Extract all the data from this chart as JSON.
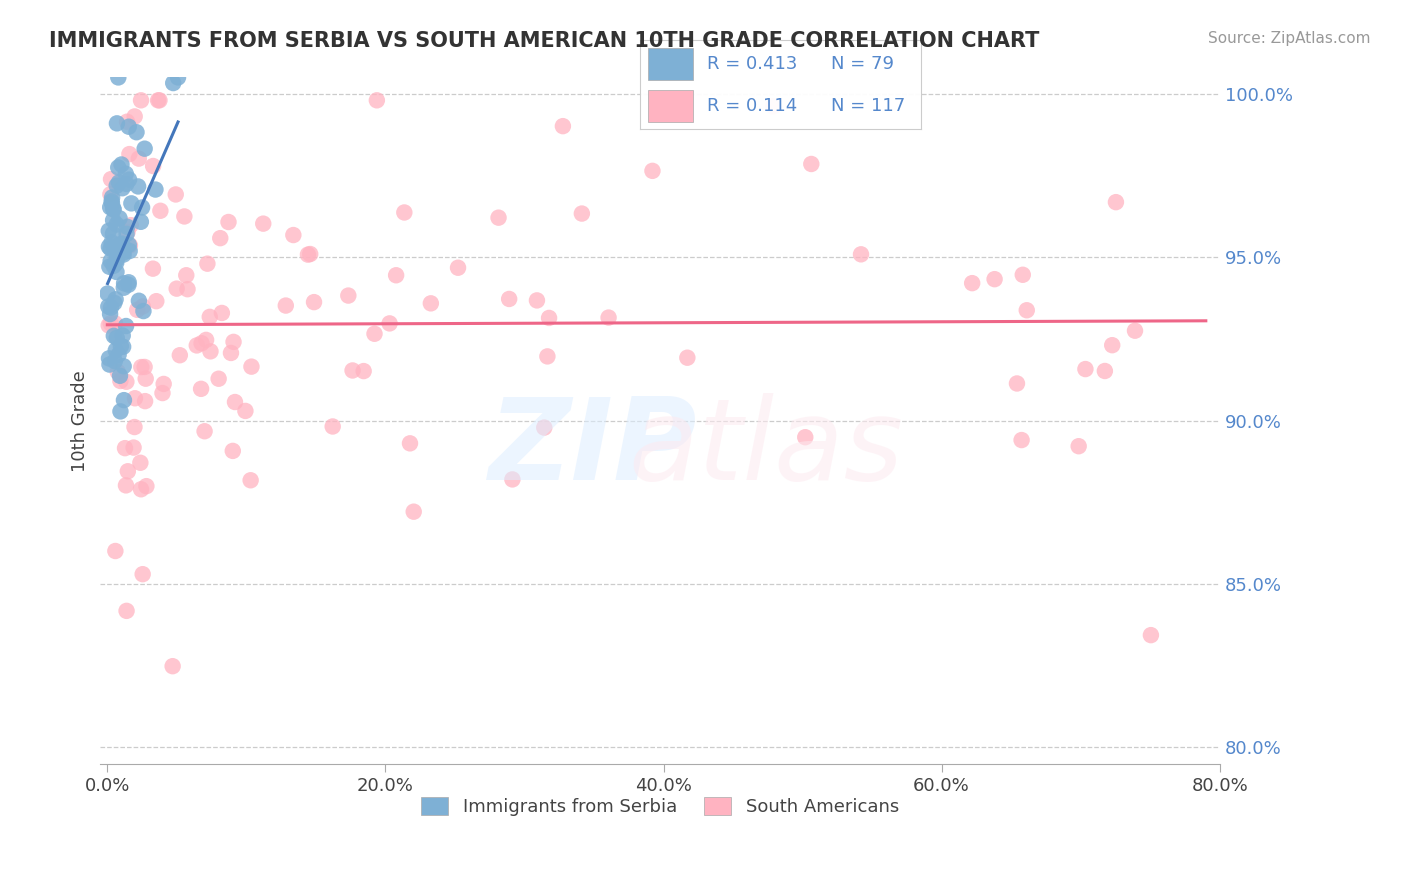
{
  "title": "IMMIGRANTS FROM SERBIA VS SOUTH AMERICAN 10TH GRADE CORRELATION CHART",
  "source": "Source: ZipAtlas.com",
  "ylabel": "10th Grade",
  "legend_label1": "Immigrants from Serbia",
  "legend_label2": "South Americans",
  "R1": 0.413,
  "N1": 79,
  "R2": 0.114,
  "N2": 117,
  "xlim": [
    -0.005,
    0.8
  ],
  "ylim": [
    0.795,
    1.005
  ],
  "yticks": [
    0.8,
    0.85,
    0.9,
    0.95,
    1.0
  ],
  "ytick_labels": [
    "80.0%",
    "85.0%",
    "90.0%",
    "95.0%",
    "100.0%"
  ],
  "xticks": [
    0.0,
    0.2,
    0.4,
    0.6,
    0.8
  ],
  "xtick_labels": [
    "0.0%",
    "20.0%",
    "40.0%",
    "60.0%",
    "80.0%"
  ],
  "color_serbia": "#7EB0D5",
  "color_south_american": "#FFB3C1",
  "trend_color_serbia": "#4477BB",
  "trend_color_south_american": "#EE6688",
  "axis_color": "#5588CC",
  "background_color": "#FFFFFF"
}
